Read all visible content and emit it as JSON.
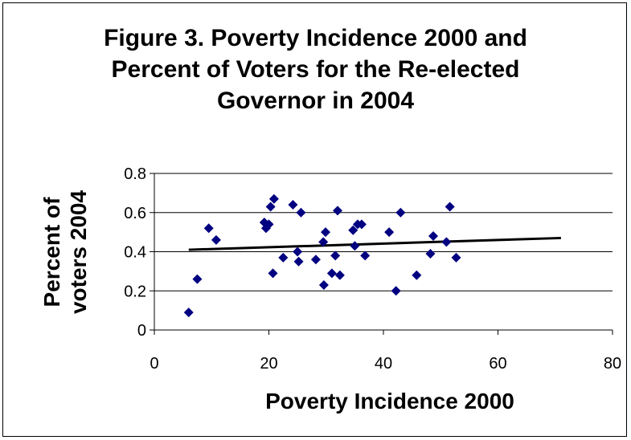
{
  "chart_data": {
    "type": "scatter",
    "title_lines": [
      "Figure 3. Poverty Incidence 2000 and",
      "Percent of Voters for the Re-elected",
      "Governor in 2004"
    ],
    "xlabel": "Poverty Incidence 2000",
    "ylabel_lines": [
      "Percent of",
      "voters 2004"
    ],
    "xlim": [
      0,
      80
    ],
    "ylim": [
      0,
      0.8
    ],
    "x_ticks": [
      "0",
      "20",
      "40",
      "60",
      "80"
    ],
    "y_ticks": [
      "0",
      "0.2",
      "0.4",
      "0.6",
      "0.8"
    ],
    "grid": "horizontal",
    "legend": "none",
    "marker_color": "#000080",
    "trendline_color": "#000000",
    "trendline": {
      "x": [
        6,
        71
      ],
      "y": [
        0.41,
        0.47
      ]
    },
    "points": [
      {
        "x": 6.0,
        "y": 0.09
      },
      {
        "x": 7.5,
        "y": 0.26
      },
      {
        "x": 9.5,
        "y": 0.52
      },
      {
        "x": 10.8,
        "y": 0.46
      },
      {
        "x": 19.2,
        "y": 0.55
      },
      {
        "x": 19.5,
        "y": 0.52
      },
      {
        "x": 20.0,
        "y": 0.54
      },
      {
        "x": 20.3,
        "y": 0.63
      },
      {
        "x": 20.7,
        "y": 0.29
      },
      {
        "x": 20.9,
        "y": 0.67
      },
      {
        "x": 22.5,
        "y": 0.37
      },
      {
        "x": 24.2,
        "y": 0.64
      },
      {
        "x": 25.0,
        "y": 0.4
      },
      {
        "x": 25.2,
        "y": 0.35
      },
      {
        "x": 25.6,
        "y": 0.6
      },
      {
        "x": 28.2,
        "y": 0.36
      },
      {
        "x": 29.5,
        "y": 0.45
      },
      {
        "x": 29.6,
        "y": 0.23
      },
      {
        "x": 29.9,
        "y": 0.5
      },
      {
        "x": 31.0,
        "y": 0.29
      },
      {
        "x": 31.6,
        "y": 0.38
      },
      {
        "x": 32.0,
        "y": 0.61
      },
      {
        "x": 32.4,
        "y": 0.28
      },
      {
        "x": 34.7,
        "y": 0.51
      },
      {
        "x": 35.0,
        "y": 0.43
      },
      {
        "x": 35.5,
        "y": 0.54
      },
      {
        "x": 36.2,
        "y": 0.54
      },
      {
        "x": 36.8,
        "y": 0.38
      },
      {
        "x": 41.0,
        "y": 0.5
      },
      {
        "x": 42.2,
        "y": 0.2
      },
      {
        "x": 43.0,
        "y": 0.6
      },
      {
        "x": 45.8,
        "y": 0.28
      },
      {
        "x": 48.2,
        "y": 0.39
      },
      {
        "x": 48.7,
        "y": 0.48
      },
      {
        "x": 51.0,
        "y": 0.45
      },
      {
        "x": 51.6,
        "y": 0.63
      },
      {
        "x": 52.7,
        "y": 0.37
      }
    ]
  }
}
